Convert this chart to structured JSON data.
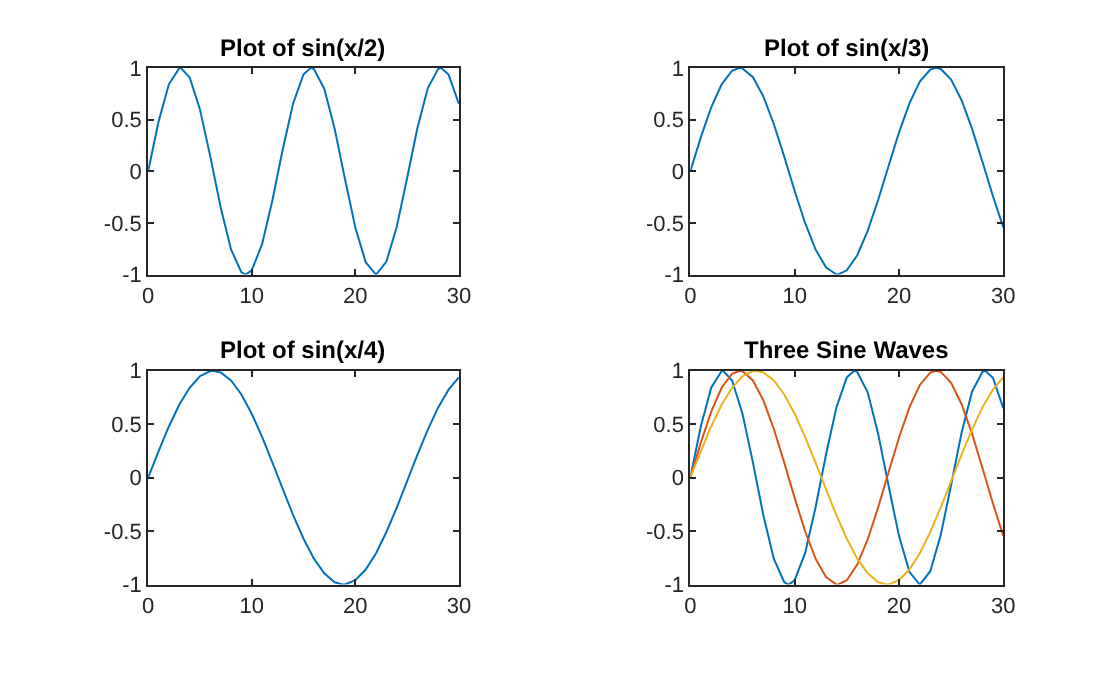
{
  "chart_data": [
    {
      "type": "line",
      "title": "Plot of sin(x/2)",
      "xlim": [
        0,
        30
      ],
      "ylim": [
        -1,
        1
      ],
      "xticks": [
        0,
        10,
        20,
        30
      ],
      "yticks": [
        -1,
        -0.5,
        0,
        0.5,
        1
      ],
      "series": [
        {
          "color": "#0072bd",
          "x": [
            0,
            1,
            2,
            3,
            3.14,
            4,
            5,
            6,
            7,
            8,
            9,
            9.42,
            10,
            11,
            12,
            13,
            14,
            15,
            15.71,
            16,
            17,
            18,
            19,
            20,
            21,
            21.99,
            22,
            23,
            24,
            25,
            26,
            27,
            28,
            28.27,
            29,
            30
          ],
          "values": [
            0,
            0.479,
            0.841,
            0.997,
            1,
            0.909,
            0.598,
            0.141,
            -0.351,
            -0.757,
            -0.978,
            -1,
            -0.959,
            -0.706,
            -0.279,
            0.215,
            0.657,
            0.938,
            1,
            0.989,
            0.798,
            0.412,
            -0.075,
            -0.544,
            -0.88,
            -1,
            -1,
            -0.875,
            -0.537,
            -0.066,
            0.42,
            0.804,
            0.991,
            1,
            0.935,
            0.65
          ]
        }
      ]
    },
    {
      "type": "line",
      "title": "Plot of sin(x/3)",
      "xlim": [
        0,
        30
      ],
      "ylim": [
        -1,
        1
      ],
      "xticks": [
        0,
        10,
        20,
        30
      ],
      "yticks": [
        -1,
        -0.5,
        0,
        0.5,
        1
      ],
      "series": [
        {
          "color": "#0072bd",
          "x": [
            0,
            1,
            2,
            3,
            4,
            4.71,
            5,
            6,
            7,
            8,
            9,
            10,
            11,
            12,
            13,
            14,
            14.14,
            15,
            16,
            17,
            18,
            19,
            20,
            21,
            22,
            23,
            23.56,
            24,
            25,
            26,
            27,
            28,
            29,
            30
          ],
          "values": [
            0,
            0.327,
            0.618,
            0.841,
            0.972,
            1,
            0.995,
            0.909,
            0.723,
            0.457,
            0.141,
            -0.191,
            -0.501,
            -0.757,
            -0.929,
            -0.999,
            -1,
            -0.959,
            -0.813,
            -0.578,
            -0.279,
            0.05,
            0.374,
            0.657,
            0.867,
            0.983,
            1,
            0.989,
            0.887,
            0.687,
            0.412,
            0.091,
            -0.24,
            -0.544
          ]
        }
      ]
    },
    {
      "type": "line",
      "title": "Plot of sin(x/4)",
      "xlim": [
        0,
        30
      ],
      "ylim": [
        -1,
        1
      ],
      "xticks": [
        0,
        10,
        20,
        30
      ],
      "yticks": [
        -1,
        -0.5,
        0,
        0.5,
        1
      ],
      "series": [
        {
          "color": "#0072bd",
          "x": [
            0,
            1,
            2,
            3,
            4,
            5,
            6,
            6.28,
            7,
            8,
            9,
            10,
            11,
            12,
            13,
            14,
            15,
            16,
            17,
            18,
            18.85,
            19,
            20,
            21,
            22,
            23,
            24,
            25,
            26,
            27,
            28,
            29,
            30
          ],
          "values": [
            0,
            0.247,
            0.479,
            0.682,
            0.841,
            0.949,
            0.997,
            1,
            0.984,
            0.909,
            0.778,
            0.598,
            0.382,
            0.141,
            -0.108,
            -0.351,
            -0.571,
            -0.757,
            -0.895,
            -0.978,
            -1,
            -0.999,
            -0.959,
            -0.859,
            -0.706,
            -0.508,
            -0.279,
            -0.033,
            0.215,
            0.45,
            0.657,
            0.823,
            0.938
          ]
        }
      ]
    },
    {
      "type": "line",
      "title": "Three Sine Waves",
      "xlim": [
        0,
        30
      ],
      "ylim": [
        -1,
        1
      ],
      "xticks": [
        0,
        10,
        20,
        30
      ],
      "yticks": [
        -1,
        -0.5,
        0,
        0.5,
        1
      ],
      "series": [
        {
          "color": "#0072bd",
          "x": [
            0,
            1,
            2,
            3,
            3.14,
            4,
            5,
            6,
            7,
            8,
            9,
            9.42,
            10,
            11,
            12,
            13,
            14,
            15,
            15.71,
            16,
            17,
            18,
            19,
            20,
            21,
            21.99,
            22,
            23,
            24,
            25,
            26,
            27,
            28,
            28.27,
            29,
            30
          ],
          "values": [
            0,
            0.479,
            0.841,
            0.997,
            1,
            0.909,
            0.598,
            0.141,
            -0.351,
            -0.757,
            -0.978,
            -1,
            -0.959,
            -0.706,
            -0.279,
            0.215,
            0.657,
            0.938,
            1,
            0.989,
            0.798,
            0.412,
            -0.075,
            -0.544,
            -0.88,
            -1,
            -1,
            -0.875,
            -0.537,
            -0.066,
            0.42,
            0.804,
            0.991,
            1,
            0.935,
            0.65
          ]
        },
        {
          "color": "#d95319",
          "x": [
            0,
            1,
            2,
            3,
            4,
            4.71,
            5,
            6,
            7,
            8,
            9,
            10,
            11,
            12,
            13,
            14,
            14.14,
            15,
            16,
            17,
            18,
            19,
            20,
            21,
            22,
            23,
            23.56,
            24,
            25,
            26,
            27,
            28,
            29,
            30
          ],
          "values": [
            0,
            0.327,
            0.618,
            0.841,
            0.972,
            1,
            0.995,
            0.909,
            0.723,
            0.457,
            0.141,
            -0.191,
            -0.501,
            -0.757,
            -0.929,
            -0.999,
            -1,
            -0.959,
            -0.813,
            -0.578,
            -0.279,
            0.05,
            0.374,
            0.657,
            0.867,
            0.983,
            1,
            0.989,
            0.887,
            0.687,
            0.412,
            0.091,
            -0.24,
            -0.544
          ]
        },
        {
          "color": "#edb120",
          "x": [
            0,
            1,
            2,
            3,
            4,
            5,
            6,
            6.28,
            7,
            8,
            9,
            10,
            11,
            12,
            13,
            14,
            15,
            16,
            17,
            18,
            18.85,
            19,
            20,
            21,
            22,
            23,
            24,
            25,
            26,
            27,
            28,
            29,
            30
          ],
          "values": [
            0,
            0.247,
            0.479,
            0.682,
            0.841,
            0.949,
            0.997,
            1,
            0.984,
            0.909,
            0.778,
            0.598,
            0.382,
            0.141,
            -0.108,
            -0.351,
            -0.571,
            -0.757,
            -0.895,
            -0.978,
            -1,
            -0.999,
            -0.959,
            -0.859,
            -0.706,
            -0.508,
            -0.279,
            -0.033,
            0.215,
            0.45,
            0.657,
            0.823,
            0.938
          ]
        }
      ]
    }
  ]
}
